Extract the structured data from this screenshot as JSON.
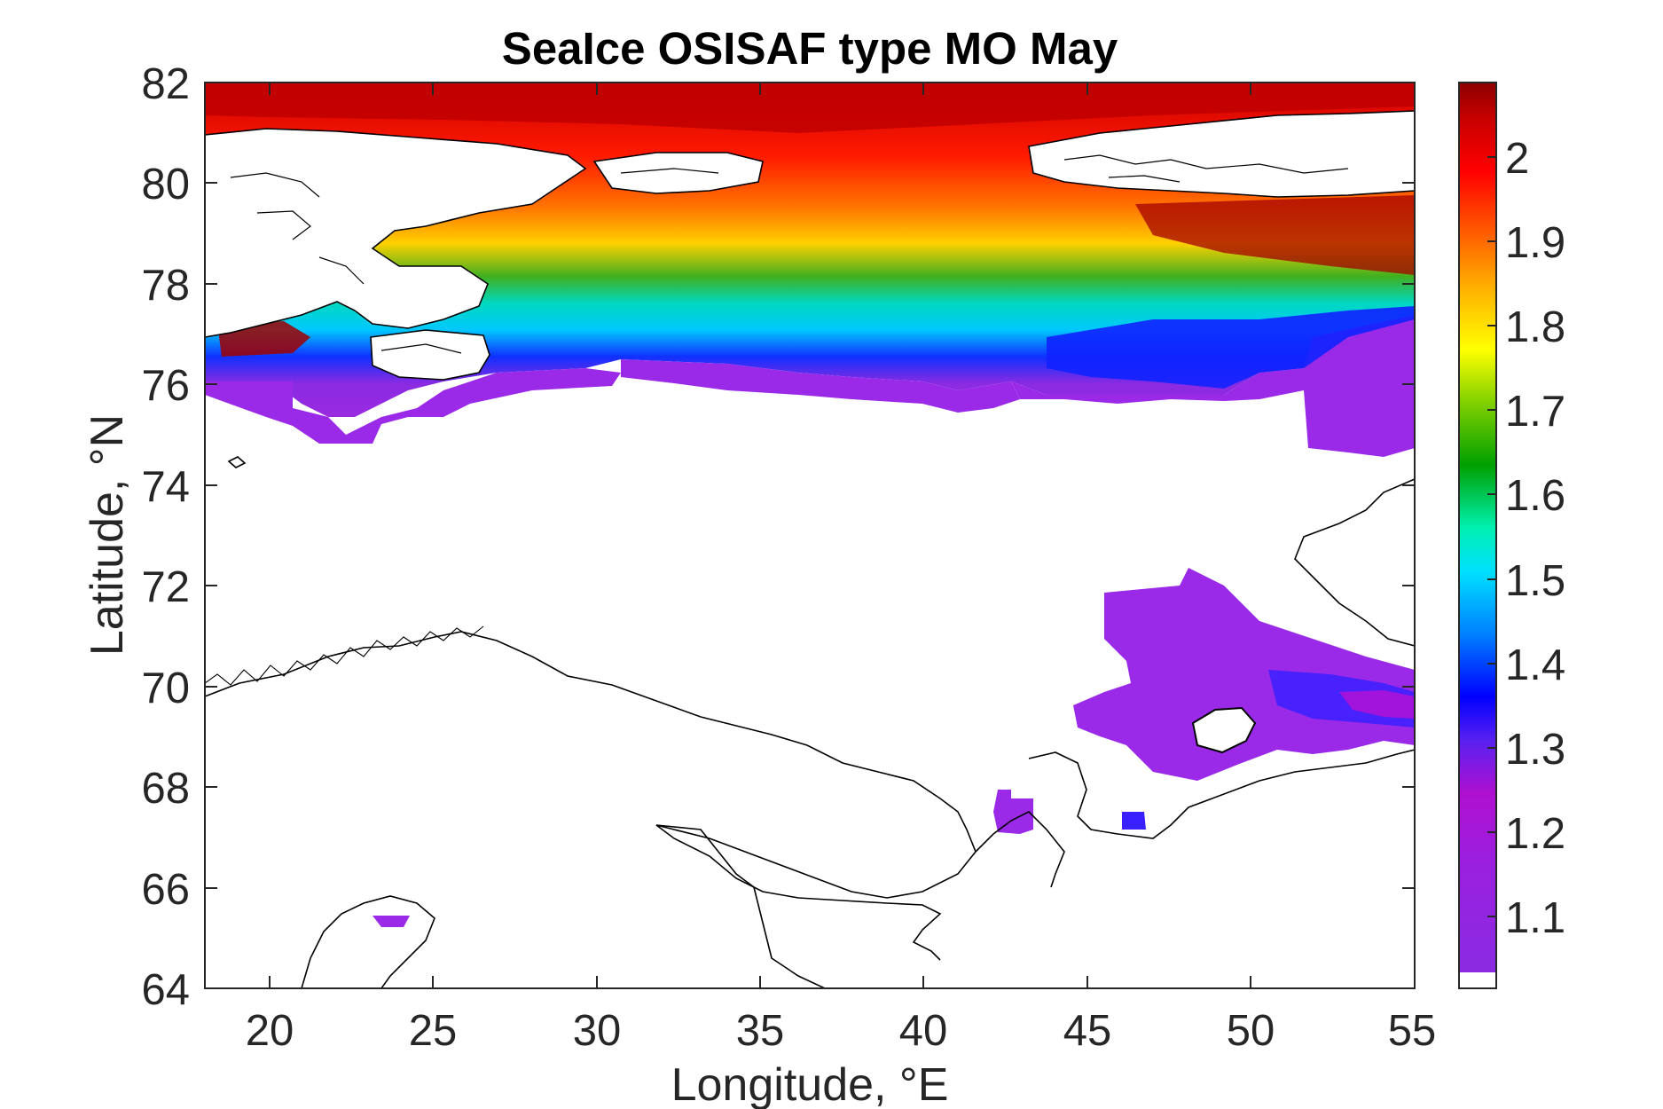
{
  "chart_data": {
    "type": "heatmap",
    "title": "SeaIce OSISAF type MO May",
    "xlabel": "Longitude, °E",
    "ylabel": "Latitude, °N",
    "xlim": [
      18,
      55
    ],
    "ylim": [
      64,
      82
    ],
    "x_ticks": [
      "20",
      "25",
      "30",
      "35",
      "40",
      "45",
      "50",
      "55"
    ],
    "y_ticks": [
      "82",
      "80",
      "78",
      "76",
      "74",
      "72",
      "70",
      "68",
      "66",
      "64"
    ],
    "colorbar": {
      "range": [
        1.02,
        2.09
      ],
      "ticks": [
        "2",
        "1.9",
        "1.8",
        "1.7",
        "1.6",
        "1.5",
        "1.4",
        "1.3",
        "1.2",
        "1.1"
      ],
      "colormap": [
        "#ffffff",
        "#8a2be2",
        "#b010d0",
        "#3a1cff",
        "#0000ff",
        "#00c8ff",
        "#00ffd0",
        "#00a000",
        "#a0e000",
        "#ffff00",
        "#ffa000",
        "#ff4000",
        "#ff0000",
        "#8b0000"
      ]
    },
    "ice_bands": [
      {
        "lon_range": [
          18,
          55
        ],
        "lat_range": [
          80.8,
          82.0
        ],
        "value": 2.05
      },
      {
        "lon_range": [
          26,
          55
        ],
        "lat_range": [
          79.0,
          80.8
        ],
        "value": 1.97
      },
      {
        "lon_range": [
          28,
          55
        ],
        "lat_range": [
          78.3,
          79.0
        ],
        "value": 1.85
      },
      {
        "lon_range": [
          30,
          55
        ],
        "lat_range": [
          77.6,
          78.3
        ],
        "value": 1.65
      },
      {
        "lon_range": [
          32,
          55
        ],
        "lat_range": [
          76.9,
          77.6
        ],
        "value": 1.48
      },
      {
        "lon_range": [
          38,
          55
        ],
        "lat_range": [
          76.2,
          76.9
        ],
        "value": 1.32
      },
      {
        "lon_range": [
          18,
          55
        ],
        "lat_range": [
          75.8,
          76.4
        ],
        "value": 1.12
      }
    ],
    "grid": false
  },
  "colors": {
    "axis": "#262626",
    "coastline": "#000000",
    "background": "#ffffff"
  }
}
